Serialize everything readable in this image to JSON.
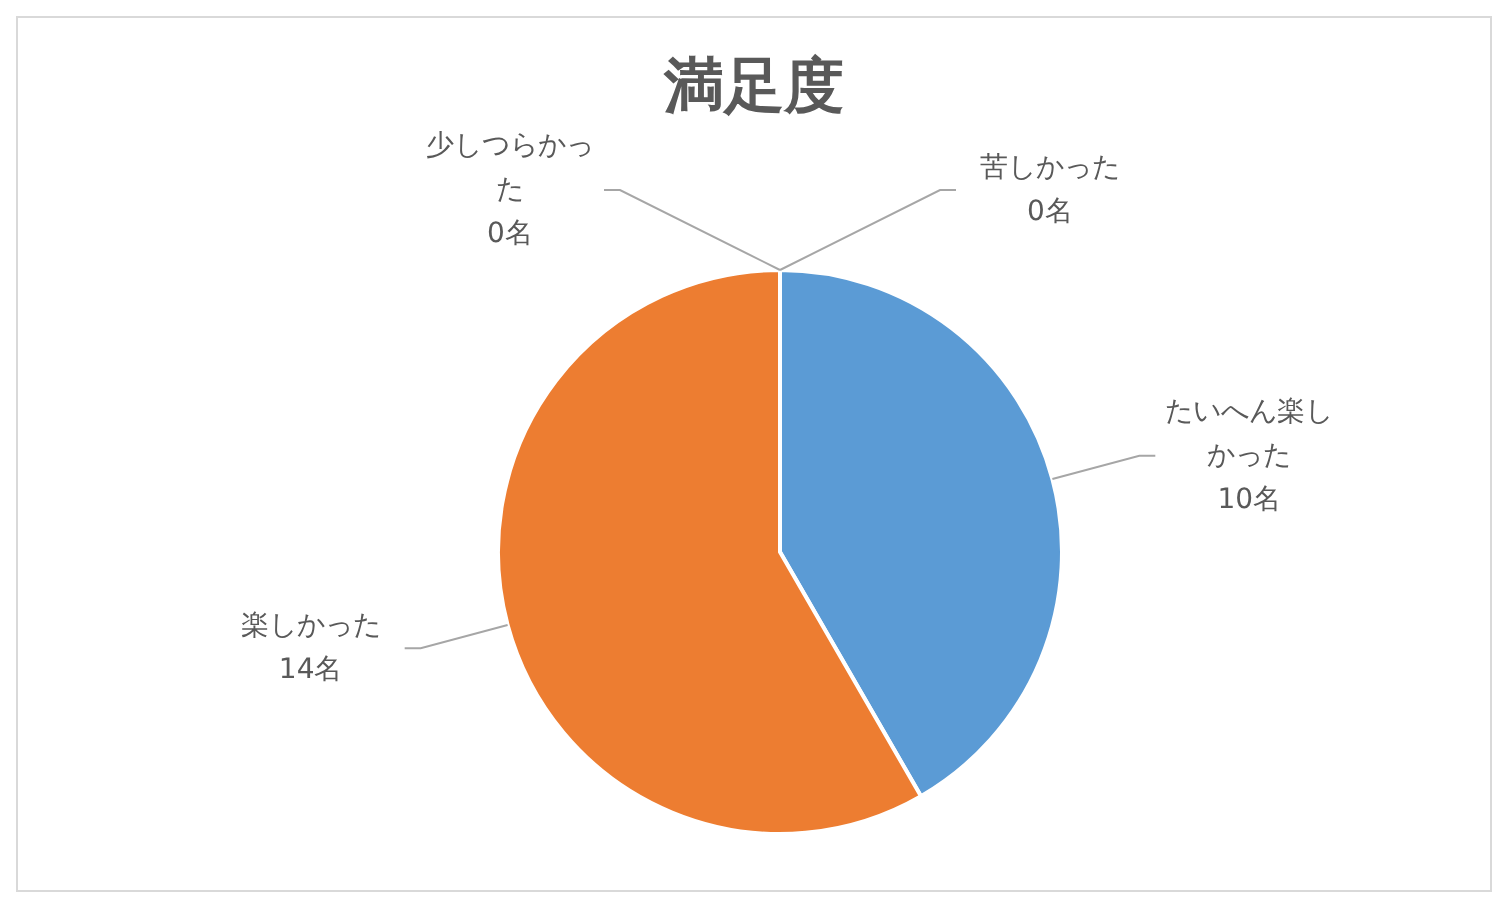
{
  "chart_data": {
    "type": "pie",
    "title": "満足度",
    "categories": [
      "たいへん楽しかった",
      "楽しかった",
      "少しつらかった",
      "苦しかった"
    ],
    "values": [
      10,
      14,
      0,
      0
    ],
    "colors": [
      "#5b9bd5",
      "#ed7d31",
      "#a5a5a5",
      "#ffc000"
    ],
    "value_labels": [
      "10名",
      "14名",
      "0名",
      "0名"
    ],
    "legend": false
  }
}
